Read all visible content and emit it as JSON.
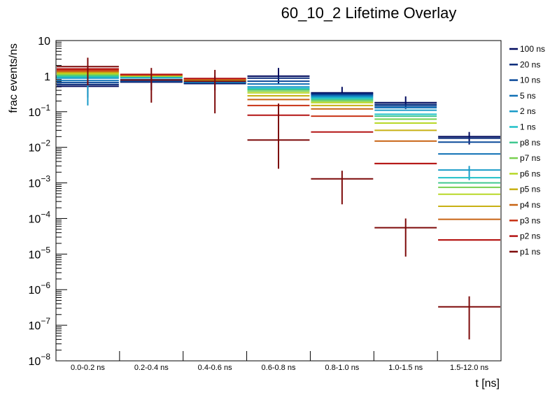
{
  "chart_data": {
    "type": "line",
    "subtype": "step-histogram-overlay",
    "title": "60_10_2 Lifetime Overlay",
    "xlabel": "t [ns]",
    "ylabel": "frac events/ns",
    "yscale": "log",
    "ylim": [
      1e-08,
      10
    ],
    "grid": false,
    "legend_position": "right",
    "categories": [
      "0.0-0.2 ns",
      "0.2-0.4 ns",
      "0.4-0.6 ns",
      "0.6-0.8 ns",
      "0.8-1.0 ns",
      "1.0-1.5 ns",
      "1.5-12.0 ns"
    ],
    "y_ticks": [
      {
        "base": "10",
        "exp": "-8",
        "value": 1e-08
      },
      {
        "base": "10",
        "exp": "-7",
        "value": 1e-07
      },
      {
        "base": "10",
        "exp": "-6",
        "value": 1e-06
      },
      {
        "base": "10",
        "exp": "-5",
        "value": 1e-05
      },
      {
        "base": "10",
        "exp": "-4",
        "value": 0.0001
      },
      {
        "base": "10",
        "exp": "-3",
        "value": 0.001
      },
      {
        "base": "10",
        "exp": "-2",
        "value": 0.01
      },
      {
        "base": "10",
        "exp": "-1",
        "value": 0.1
      },
      {
        "base": "1",
        "exp": "",
        "value": 1
      },
      {
        "base": "10",
        "exp": "",
        "value": 10
      }
    ],
    "series": [
      {
        "name": "100 ns",
        "color": "#000a5e",
        "values": [
          0.52,
          0.68,
          0.62,
          1.0,
          0.34,
          0.18,
          0.02
        ],
        "err_low": [
          0.25,
          0.4,
          0.4,
          0.6,
          0.25,
          0.12,
          0.012
        ],
        "err_high": [
          1.2,
          1.1,
          1.0,
          1.7,
          0.5,
          0.27,
          0.027
        ]
      },
      {
        "name": "20 ns",
        "color": "#0a2b7a",
        "values": [
          0.58,
          0.7,
          0.64,
          0.88,
          0.32,
          0.16,
          0.018
        ],
        "err_low": null,
        "err_high": null
      },
      {
        "name": "10 ns",
        "color": "#0b4a9a",
        "values": [
          0.66,
          0.72,
          0.66,
          0.72,
          0.3,
          0.145,
          0.014
        ],
        "err_low": null,
        "err_high": null
      },
      {
        "name": "5 ns",
        "color": "#1070b5",
        "values": [
          0.75,
          0.8,
          0.68,
          0.6,
          0.28,
          0.13,
          0.0065
        ],
        "err_low": null,
        "err_high": null
      },
      {
        "name": "2 ns",
        "color": "#1a9bc8",
        "values": [
          0.88,
          0.9,
          0.7,
          0.5,
          0.26,
          0.11,
          0.0023
        ],
        "err_low": [
          0.15,
          null,
          null,
          null,
          null,
          null,
          0.0012
        ],
        "err_high": [
          1.5,
          null,
          null,
          null,
          null,
          null,
          0.003
        ]
      },
      {
        "name": "1 ns",
        "color": "#20c0c8",
        "values": [
          0.95,
          0.95,
          0.72,
          0.45,
          0.24,
          0.085,
          0.0014
        ],
        "err_low": null,
        "err_high": null
      },
      {
        "name": "p8 ns",
        "color": "#40c890",
        "values": [
          1.02,
          0.98,
          0.74,
          0.42,
          0.22,
          0.075,
          0.001
        ],
        "err_low": null,
        "err_high": null
      },
      {
        "name": "p7 ns",
        "color": "#78d050",
        "values": [
          1.1,
          1.0,
          0.76,
          0.38,
          0.2,
          0.062,
          0.00075
        ],
        "err_low": null,
        "err_high": null
      },
      {
        "name": "p6 ns",
        "color": "#b8d828",
        "values": [
          1.18,
          1.02,
          0.78,
          0.34,
          0.18,
          0.048,
          0.00048
        ],
        "err_low": null,
        "err_high": null
      },
      {
        "name": "p5 ns",
        "color": "#c8b014",
        "values": [
          1.26,
          1.05,
          0.8,
          0.28,
          0.15,
          0.03,
          0.00022
        ],
        "err_low": null,
        "err_high": null
      },
      {
        "name": "p4 ns",
        "color": "#c86414",
        "values": [
          1.36,
          1.08,
          0.82,
          0.22,
          0.12,
          0.015,
          9.5e-05
        ],
        "err_low": null,
        "err_high": null
      },
      {
        "name": "p3 ns",
        "color": "#c83214",
        "values": [
          1.48,
          1.1,
          0.84,
          0.15,
          0.075,
          0.0035,
          2.5e-05
        ],
        "err_low": null,
        "err_high": null
      },
      {
        "name": "p2 ns",
        "color": "#b41414",
        "values": [
          1.6,
          1.12,
          0.86,
          0.08,
          0.027,
          0.0035,
          2.5e-05
        ],
        "err_low": null,
        "err_high": null
      },
      {
        "name": "p1 ns",
        "color": "#7d0a0a",
        "values": [
          1.85,
          0.78,
          0.72,
          0.016,
          0.0013,
          5.5e-05,
          3.3e-07
        ],
        "err_low": [
          0.55,
          0.18,
          0.09,
          0.0025,
          0.00025,
          8.5e-06,
          4e-08
        ],
        "err_high": [
          3.3,
          1.7,
          1.5,
          0.17,
          0.0022,
          0.0001,
          6.5e-07
        ]
      }
    ]
  }
}
